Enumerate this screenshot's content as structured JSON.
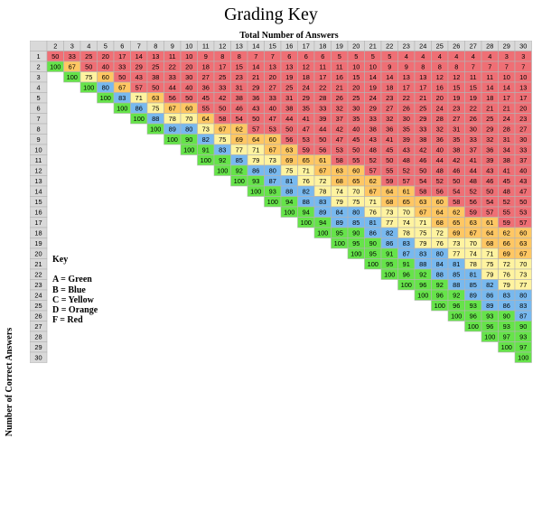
{
  "title": "Grading Key",
  "column_header": "Total Number of Answers",
  "row_header": "Number of Correct Answers",
  "key": {
    "title": "Key",
    "items": [
      "A = Green",
      "B = Blue",
      "C = Yellow",
      "D = Orange",
      "F = Red"
    ]
  },
  "colors": {
    "A": "#66e34a",
    "B": "#78b9ef",
    "C": "#fff3a0",
    "D": "#ffc763",
    "F": "#ef6f75",
    "header_bg": "#d9d9d9",
    "border": "#b3b3b3"
  },
  "columns": [
    2,
    3,
    4,
    5,
    6,
    7,
    8,
    9,
    10,
    11,
    12,
    13,
    14,
    15,
    16,
    17,
    18,
    19,
    20,
    21,
    22,
    23,
    24,
    25,
    26,
    27,
    28,
    29,
    30
  ],
  "rows": [
    1,
    2,
    3,
    4,
    5,
    6,
    7,
    8,
    9,
    10,
    11,
    12,
    13,
    14,
    15,
    16,
    17,
    18,
    19,
    20,
    21,
    22,
    23,
    24,
    25,
    26,
    27,
    28,
    29,
    30
  ],
  "grading_scale": {
    "A": 90,
    "B": 80,
    "C": 70,
    "D": 60
  }
}
